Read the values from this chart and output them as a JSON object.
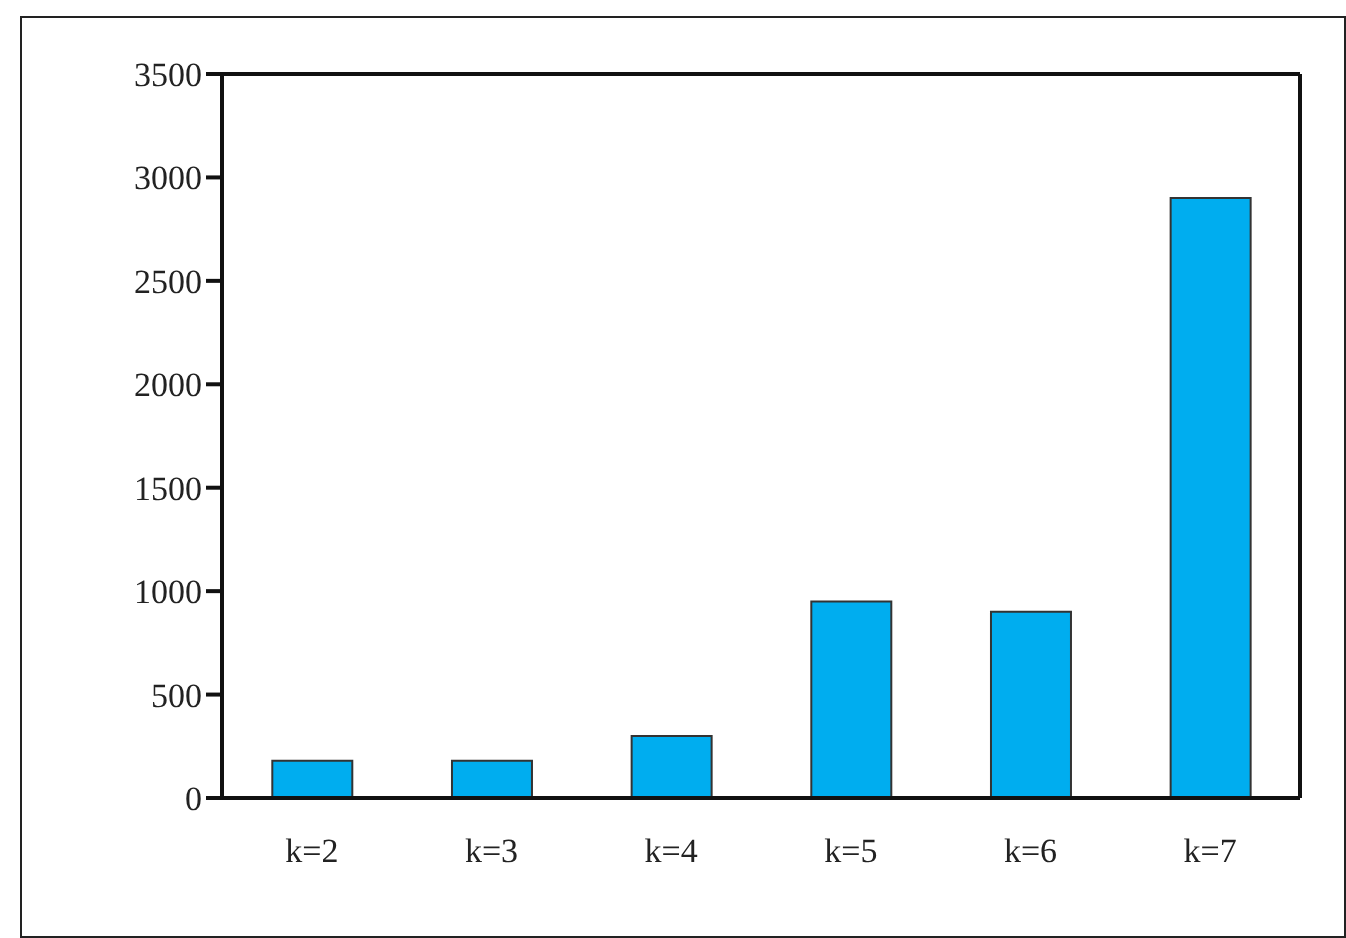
{
  "chart_data": {
    "type": "bar",
    "categories": [
      "k=2",
      "k=3",
      "k=4",
      "k=5",
      "k=6",
      "k=7"
    ],
    "values": [
      180,
      180,
      300,
      950,
      900,
      2900
    ],
    "color": "#00adef",
    "ylim": [
      0,
      3500
    ],
    "yticks": [
      0,
      500,
      1000,
      1500,
      2000,
      2500,
      3000,
      3500
    ],
    "grid": false,
    "legend": false
  }
}
